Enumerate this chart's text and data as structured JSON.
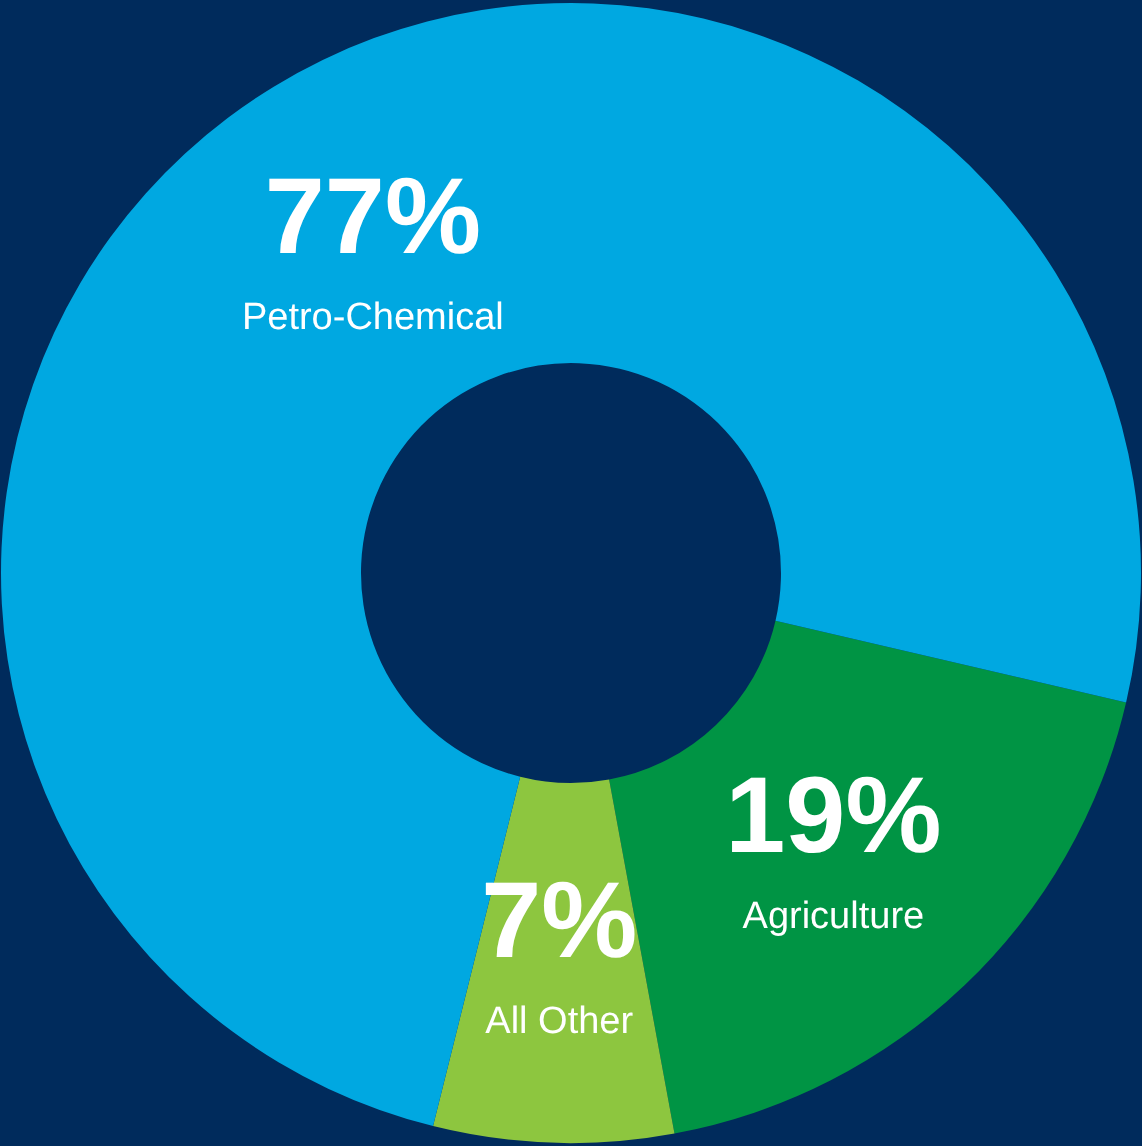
{
  "chart_data": {
    "type": "donut",
    "categories": [
      "Agriculture",
      "All Other",
      "Petro-Chemical"
    ],
    "values": [
      19,
      7,
      77
    ],
    "colors": [
      "#009444",
      "#8dc63f",
      "#00a8e1"
    ],
    "value_labels": [
      "19%",
      "7%",
      "77%"
    ],
    "legend": false
  }
}
